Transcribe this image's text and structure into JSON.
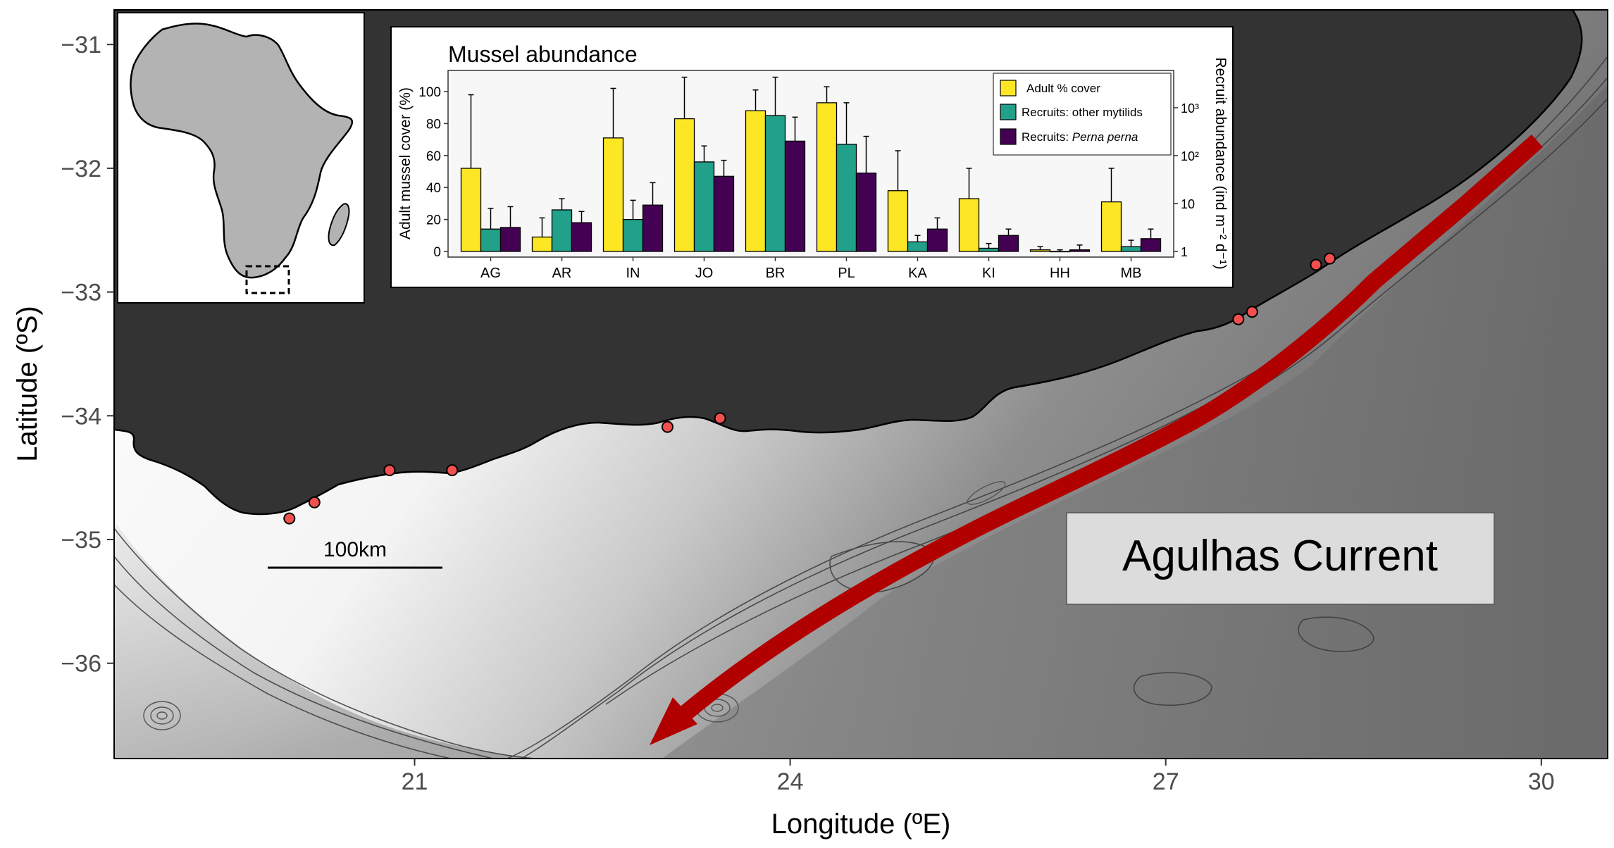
{
  "map": {
    "x_axis": {
      "label": "Longitude (ºE)",
      "ticks": [
        21,
        24,
        27,
        30
      ],
      "range": [
        18.6,
        30.53
      ]
    },
    "y_axis": {
      "label": "Latitude (ºS)",
      "ticks": [
        -31,
        -32,
        -33,
        -34,
        -35,
        -36
      ],
      "range": [
        -36.77,
        -30.72
      ]
    },
    "current_label": "Agulhas Current",
    "scale_bar_label": "100km",
    "colors": {
      "land": "#333333",
      "current_arrow": "#b00000",
      "site_marker": "#f24f4f",
      "ocean_shallow": "#fafafa",
      "ocean_deep": "#6e6e6e"
    },
    "site_markers": [
      {
        "lon": 20.0,
        "lat": -34.83
      },
      {
        "lon": 20.2,
        "lat": -34.7
      },
      {
        "lon": 20.8,
        "lat": -34.44
      },
      {
        "lon": 21.3,
        "lat": -34.44
      },
      {
        "lon": 23.02,
        "lat": -34.09
      },
      {
        "lon": 23.44,
        "lat": -34.02
      },
      {
        "lon": 27.58,
        "lat": -33.22
      },
      {
        "lon": 27.69,
        "lat": -33.16
      },
      {
        "lon": 28.2,
        "lat": -32.78
      },
      {
        "lon": 28.31,
        "lat": -32.73
      }
    ]
  },
  "inset_chart": {
    "chart_data": {
      "type": "bar",
      "title": "Mussel abundance",
      "ylabel_left": "Adult mussel cover (%)",
      "ylabel_right": "Recruit abundance (ind m⁻² d⁻¹)",
      "left_ticks": [
        0,
        20,
        40,
        60,
        80,
        100
      ],
      "ylim": [
        0,
        110
      ],
      "right_ticks": [
        "1",
        "10",
        "10²",
        "10³"
      ],
      "categories": [
        "AG",
        "AR",
        "IN",
        "JO",
        "BR",
        "PL",
        "KA",
        "KI",
        "HH",
        "MB"
      ],
      "series": [
        {
          "name": "Adult % cover",
          "color": "#fde725",
          "values": [
            52,
            9,
            71,
            83,
            88,
            93,
            38,
            33,
            1,
            31
          ],
          "error": [
            98,
            21,
            102,
            109,
            101,
            103,
            63,
            52,
            3,
            52
          ]
        },
        {
          "name": "Recruits: other mytilids",
          "color": "#21a08a",
          "values": [
            14,
            26,
            20,
            56,
            85,
            67,
            6,
            2,
            0,
            3
          ],
          "error": [
            27,
            33,
            32,
            66,
            109,
            93,
            10,
            5,
            1,
            7
          ]
        },
        {
          "name": "Recruits: Perna perna",
          "color": "#440154",
          "values": [
            15,
            18,
            29,
            47,
            69,
            49,
            14,
            10,
            1,
            8
          ],
          "error": [
            28,
            25,
            43,
            57,
            84,
            72,
            21,
            14,
            4,
            14
          ]
        }
      ],
      "legend_position": "top-right"
    },
    "legend": {
      "adult": "Adult % cover",
      "other_prefix": "Recruits: other mytilids",
      "perna_prefix": "Recruits: ",
      "perna_species": "Perna perna"
    }
  },
  "locator_map": {
    "region": "Africa"
  }
}
